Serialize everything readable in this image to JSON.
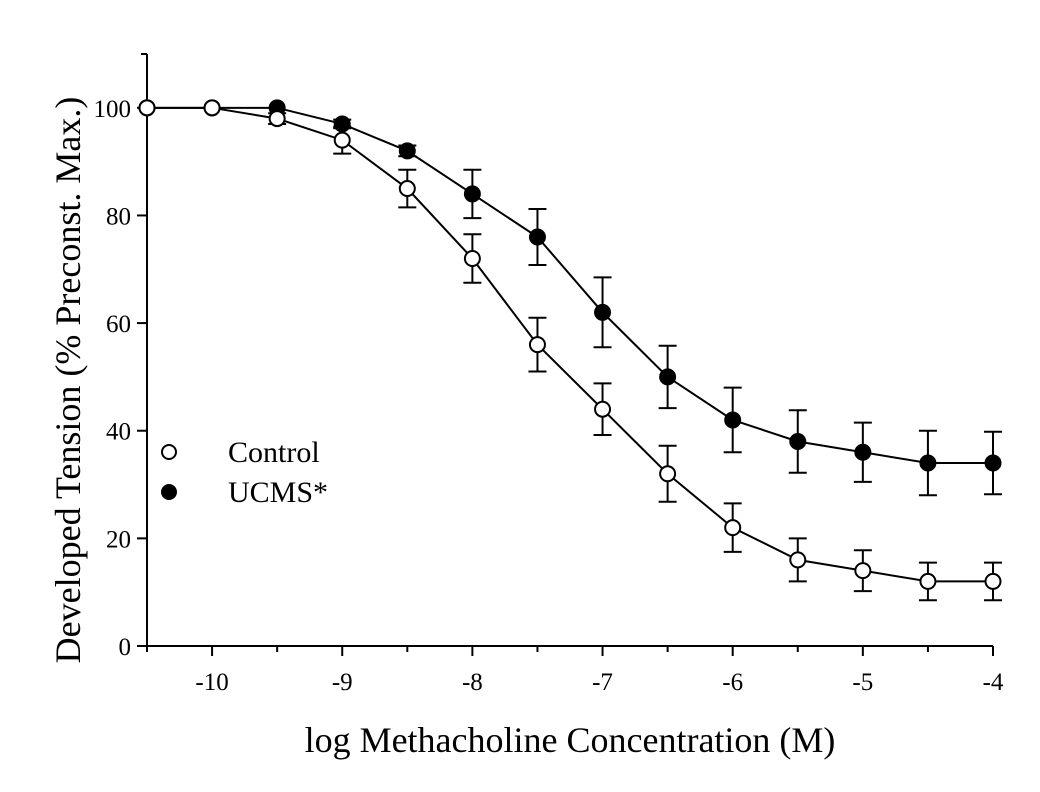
{
  "chart_data": {
    "type": "line",
    "title": "",
    "xlabel": "log Methacholine Concentration (M)",
    "ylabel": "Developed Tension (% Preconst. Max.)",
    "xlim": [
      -10.5,
      -4
    ],
    "ylim": [
      0,
      110
    ],
    "xticks": [
      -10,
      -9,
      -8,
      -7,
      -6,
      -5,
      -4
    ],
    "xtick_labels": [
      "-10",
      "-9",
      "-8",
      "-7",
      "-6",
      "-5",
      "-4"
    ],
    "yticks": [
      0,
      20,
      40,
      60,
      80,
      100
    ],
    "ytick_labels": [
      "0",
      "20",
      "40",
      "60",
      "80",
      "100"
    ],
    "grid": false,
    "legend_position": "middle-left",
    "x": [
      -10.5,
      -10,
      -9.5,
      -9,
      -8.5,
      -8,
      -7.5,
      -7,
      -6.5,
      -6,
      -5.5,
      -5,
      -4.5,
      -4
    ],
    "series": [
      {
        "name": "Control",
        "marker": "open-circle",
        "values": [
          100,
          100,
          98,
          94,
          85,
          72,
          56,
          44,
          32,
          22,
          16,
          14,
          12,
          12
        ],
        "errors": [
          0,
          0,
          1,
          2.5,
          3.5,
          4.5,
          5,
          4.8,
          5.2,
          4.5,
          4,
          3.8,
          3.5,
          3.5
        ]
      },
      {
        "name": "UCMS*",
        "marker": "filled-circle",
        "values": [
          100,
          100,
          100,
          97,
          92,
          84,
          76,
          62,
          50,
          42,
          38,
          36,
          34,
          34
        ],
        "errors": [
          0,
          0,
          0,
          0.8,
          1,
          4.5,
          5.2,
          6.5,
          5.8,
          6,
          5.8,
          5.5,
          6,
          5.8
        ]
      }
    ]
  }
}
